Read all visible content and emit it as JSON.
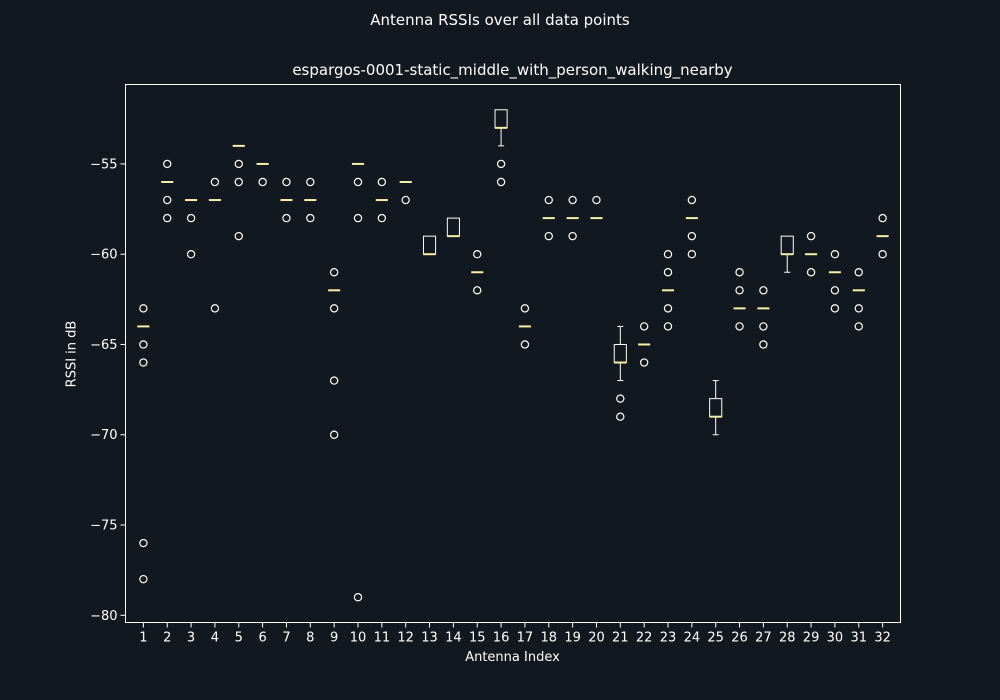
{
  "suptitle": "Antenna RSSIs over all data points",
  "chart_data": {
    "type": "box",
    "title": "espargos-0001-static_middle_with_person_walking_nearby",
    "xlabel": "Antenna Index",
    "ylabel": "RSSI in dB",
    "ylim": [
      -80.4,
      -50.6
    ],
    "yticks": [
      -80,
      -75,
      -70,
      -65,
      -60,
      -55
    ],
    "grid": false,
    "colors": {
      "background": "#12181f",
      "axes": "#ffffff",
      "median": "#f5f0a8",
      "box": "#ffffff"
    },
    "antennas": [
      {
        "index": 1,
        "q1": -64,
        "median": -64,
        "q3": -64,
        "whislo": -64,
        "whishi": -64,
        "fliers": [
          -63,
          -65,
          -66,
          -76,
          -78
        ]
      },
      {
        "index": 2,
        "q1": -56,
        "median": -56,
        "q3": -56,
        "whislo": -56,
        "whishi": -56,
        "fliers": [
          -55,
          -57,
          -58
        ]
      },
      {
        "index": 3,
        "q1": -57,
        "median": -57,
        "q3": -57,
        "whislo": -57,
        "whishi": -57,
        "fliers": [
          -58,
          -60
        ]
      },
      {
        "index": 4,
        "q1": -57,
        "median": -57,
        "q3": -57,
        "whislo": -57,
        "whishi": -57,
        "fliers": [
          -56,
          -63
        ]
      },
      {
        "index": 5,
        "q1": -54,
        "median": -54,
        "q3": -54,
        "whislo": -54,
        "whishi": -54,
        "fliers": [
          -55,
          -56,
          -59
        ]
      },
      {
        "index": 6,
        "q1": -55,
        "median": -55,
        "q3": -55,
        "whislo": -55,
        "whishi": -55,
        "fliers": [
          -56
        ]
      },
      {
        "index": 7,
        "q1": -57,
        "median": -57,
        "q3": -57,
        "whislo": -57,
        "whishi": -57,
        "fliers": [
          -56,
          -58
        ]
      },
      {
        "index": 8,
        "q1": -57,
        "median": -57,
        "q3": -57,
        "whislo": -57,
        "whishi": -57,
        "fliers": [
          -56,
          -58
        ]
      },
      {
        "index": 9,
        "q1": -62,
        "median": -62,
        "q3": -62,
        "whislo": -62,
        "whishi": -62,
        "fliers": [
          -61,
          -63,
          -67,
          -70
        ]
      },
      {
        "index": 10,
        "q1": -55,
        "median": -55,
        "q3": -55,
        "whislo": -55,
        "whishi": -55,
        "fliers": [
          -56,
          -58,
          -79
        ]
      },
      {
        "index": 11,
        "q1": -57,
        "median": -57,
        "q3": -57,
        "whislo": -57,
        "whishi": -57,
        "fliers": [
          -56,
          -58
        ]
      },
      {
        "index": 12,
        "q1": -56,
        "median": -56,
        "q3": -56,
        "whislo": -56,
        "whishi": -56,
        "fliers": [
          -57
        ]
      },
      {
        "index": 13,
        "q1": -60,
        "median": -60,
        "q3": -59,
        "whislo": -60,
        "whishi": -59,
        "fliers": []
      },
      {
        "index": 14,
        "q1": -59,
        "median": -59,
        "q3": -58,
        "whislo": -59,
        "whishi": -58,
        "fliers": []
      },
      {
        "index": 15,
        "q1": -61,
        "median": -61,
        "q3": -61,
        "whislo": -61,
        "whishi": -61,
        "fliers": [
          -60,
          -62
        ]
      },
      {
        "index": 16,
        "q1": -53,
        "median": -53,
        "q3": -52,
        "whislo": -54,
        "whishi": -52,
        "fliers": [
          -55,
          -56
        ]
      },
      {
        "index": 17,
        "q1": -64,
        "median": -64,
        "q3": -64,
        "whislo": -64,
        "whishi": -64,
        "fliers": [
          -63,
          -65
        ]
      },
      {
        "index": 18,
        "q1": -58,
        "median": -58,
        "q3": -58,
        "whislo": -58,
        "whishi": -58,
        "fliers": [
          -57,
          -59
        ]
      },
      {
        "index": 19,
        "q1": -58,
        "median": -58,
        "q3": -58,
        "whislo": -58,
        "whishi": -58,
        "fliers": [
          -57,
          -59
        ]
      },
      {
        "index": 20,
        "q1": -58,
        "median": -58,
        "q3": -58,
        "whislo": -58,
        "whishi": -58,
        "fliers": [
          -57
        ]
      },
      {
        "index": 21,
        "q1": -66,
        "median": -66,
        "q3": -65,
        "whislo": -67,
        "whishi": -64,
        "fliers": [
          -68,
          -69
        ]
      },
      {
        "index": 22,
        "q1": -65,
        "median": -65,
        "q3": -65,
        "whislo": -65,
        "whishi": -65,
        "fliers": [
          -64,
          -66
        ]
      },
      {
        "index": 23,
        "q1": -62,
        "median": -62,
        "q3": -62,
        "whislo": -62,
        "whishi": -62,
        "fliers": [
          -60,
          -61,
          -63,
          -64
        ]
      },
      {
        "index": 24,
        "q1": -58,
        "median": -58,
        "q3": -58,
        "whislo": -58,
        "whishi": -58,
        "fliers": [
          -57,
          -59,
          -60
        ]
      },
      {
        "index": 25,
        "q1": -69,
        "median": -69,
        "q3": -68,
        "whislo": -70,
        "whishi": -67,
        "fliers": []
      },
      {
        "index": 26,
        "q1": -63,
        "median": -63,
        "q3": -63,
        "whislo": -63,
        "whishi": -63,
        "fliers": [
          -61,
          -62,
          -64
        ]
      },
      {
        "index": 27,
        "q1": -63,
        "median": -63,
        "q3": -63,
        "whislo": -63,
        "whishi": -63,
        "fliers": [
          -62,
          -64,
          -65
        ]
      },
      {
        "index": 28,
        "q1": -60,
        "median": -60,
        "q3": -59,
        "whislo": -61,
        "whishi": -59,
        "fliers": []
      },
      {
        "index": 29,
        "q1": -60,
        "median": -60,
        "q3": -60,
        "whislo": -60,
        "whishi": -60,
        "fliers": [
          -59,
          -61
        ]
      },
      {
        "index": 30,
        "q1": -61,
        "median": -61,
        "q3": -61,
        "whislo": -61,
        "whishi": -61,
        "fliers": [
          -60,
          -62,
          -63
        ]
      },
      {
        "index": 31,
        "q1": -62,
        "median": -62,
        "q3": -62,
        "whislo": -62,
        "whishi": -62,
        "fliers": [
          -61,
          -63,
          -64
        ]
      },
      {
        "index": 32,
        "q1": -59,
        "median": -59,
        "q3": -59,
        "whislo": -59,
        "whishi": -59,
        "fliers": [
          -58,
          -60
        ]
      }
    ]
  }
}
